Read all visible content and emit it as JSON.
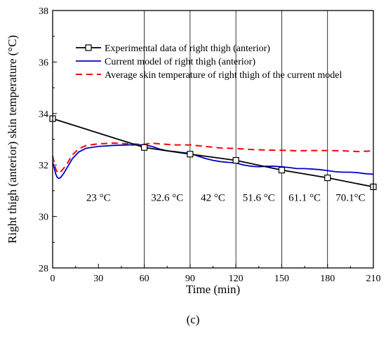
{
  "chart_data": {
    "type": "line",
    "xlabel": "Time (min)",
    "ylabel": "Right thigh (anterior) skin temperature (°C)",
    "xlim": [
      0,
      210
    ],
    "ylim": [
      28,
      38
    ],
    "x_ticks": [
      "0",
      "30",
      "60",
      "90",
      "120",
      "150",
      "180",
      "210"
    ],
    "y_ticks": [
      "28",
      "30",
      "32",
      "34",
      "36",
      "38"
    ],
    "grid": false,
    "legend_position": "top-right",
    "vertical_dividers": [
      60,
      90,
      120,
      150,
      180
    ],
    "annotations": [
      {
        "text": "23 °C",
        "x": 30,
        "y": 30.6
      },
      {
        "text": "32.6 °C",
        "x": 75,
        "y": 30.6
      },
      {
        "text": "42 °C",
        "x": 105,
        "y": 30.6
      },
      {
        "text": "51.6 °C",
        "x": 135,
        "y": 30.6
      },
      {
        "text": "61.1 °C",
        "x": 165,
        "y": 30.6
      },
      {
        "text": "70.1°C",
        "x": 195,
        "y": 30.6
      }
    ],
    "series": [
      {
        "name": "Experimental data of right thigh (anterior)",
        "color": "#000000",
        "style": "solid-square-markers",
        "points": [
          [
            0,
            33.8
          ],
          [
            60,
            32.68
          ],
          [
            90,
            32.42
          ],
          [
            120,
            32.18
          ],
          [
            150,
            31.8
          ],
          [
            180,
            31.5
          ],
          [
            210,
            31.15
          ]
        ]
      },
      {
        "name": "Current model of right thigh (anterior)",
        "color": "#0000cc",
        "style": "solid",
        "points": [
          [
            0,
            32.1
          ],
          [
            1,
            31.9
          ],
          [
            2,
            31.65
          ],
          [
            3,
            31.52
          ],
          [
            4,
            31.48
          ],
          [
            5,
            31.5
          ],
          [
            7,
            31.65
          ],
          [
            10,
            31.95
          ],
          [
            13,
            32.25
          ],
          [
            17,
            32.5
          ],
          [
            22,
            32.65
          ],
          [
            30,
            32.72
          ],
          [
            40,
            32.76
          ],
          [
            50,
            32.78
          ],
          [
            60,
            32.78
          ],
          [
            65,
            32.72
          ],
          [
            70,
            32.62
          ],
          [
            75,
            32.55
          ],
          [
            80,
            32.52
          ],
          [
            85,
            32.48
          ],
          [
            90,
            32.45
          ],
          [
            95,
            32.35
          ],
          [
            100,
            32.25
          ],
          [
            105,
            32.18
          ],
          [
            110,
            32.13
          ],
          [
            115,
            32.1
          ],
          [
            120,
            32.08
          ],
          [
            125,
            32.0
          ],
          [
            130,
            31.95
          ],
          [
            135,
            31.93
          ],
          [
            140,
            31.95
          ],
          [
            145,
            31.95
          ],
          [
            150,
            31.93
          ],
          [
            155,
            31.9
          ],
          [
            160,
            31.86
          ],
          [
            165,
            31.86
          ],
          [
            170,
            31.84
          ],
          [
            175,
            31.82
          ],
          [
            180,
            31.78
          ],
          [
            185,
            31.74
          ],
          [
            190,
            31.72
          ],
          [
            195,
            31.72
          ],
          [
            200,
            31.7
          ],
          [
            205,
            31.66
          ],
          [
            210,
            31.64
          ]
        ]
      },
      {
        "name": "Average skin temperature of right thigh of the current model",
        "color": "#ff0000",
        "style": "dashed",
        "points": [
          [
            0,
            32.35
          ],
          [
            1,
            32.1
          ],
          [
            2,
            31.85
          ],
          [
            3,
            31.72
          ],
          [
            4,
            31.68
          ],
          [
            5,
            31.72
          ],
          [
            7,
            31.85
          ],
          [
            10,
            32.1
          ],
          [
            13,
            32.4
          ],
          [
            17,
            32.62
          ],
          [
            22,
            32.76
          ],
          [
            30,
            32.82
          ],
          [
            40,
            32.85
          ],
          [
            50,
            32.82
          ],
          [
            60,
            32.8
          ],
          [
            65,
            32.85
          ],
          [
            70,
            32.82
          ],
          [
            80,
            32.78
          ],
          [
            90,
            32.78
          ],
          [
            100,
            32.72
          ],
          [
            110,
            32.66
          ],
          [
            120,
            32.64
          ],
          [
            130,
            32.6
          ],
          [
            140,
            32.58
          ],
          [
            150,
            32.57
          ],
          [
            160,
            32.55
          ],
          [
            170,
            32.56
          ],
          [
            180,
            32.56
          ],
          [
            190,
            32.55
          ],
          [
            200,
            32.52
          ],
          [
            210,
            32.55
          ]
        ]
      }
    ]
  },
  "panel_label": "(c)"
}
